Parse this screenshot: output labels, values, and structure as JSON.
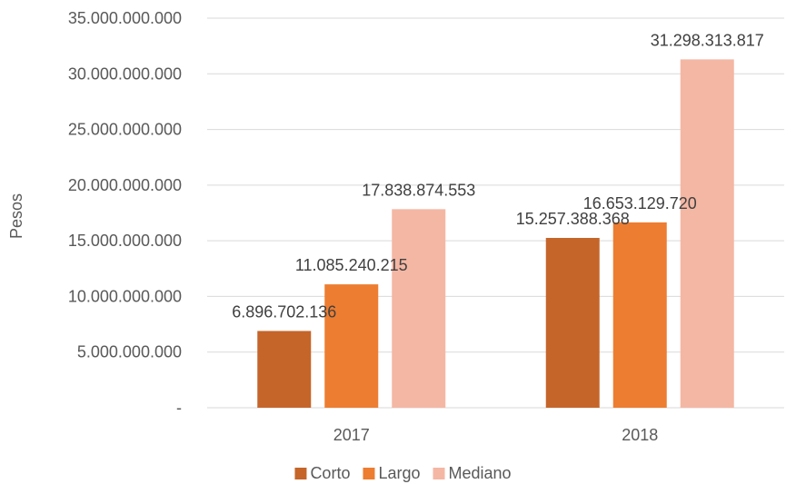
{
  "chart_data": {
    "type": "bar",
    "title": "",
    "xlabel": "",
    "ylabel": "Pesos",
    "categories": [
      "2017",
      "2018"
    ],
    "series": [
      {
        "name": "Corto",
        "color": "#C5652A",
        "values": [
          6896702136,
          15257388368
        ],
        "labels": [
          "6.896.702.136",
          "15.257.388.368"
        ]
      },
      {
        "name": "Largo",
        "color": "#ED7D31",
        "values": [
          11085240215,
          16653129720
        ],
        "labels": [
          "11.085.240.215",
          "16.653.129.720"
        ]
      },
      {
        "name": "Mediano",
        "color": "#F4B7A4",
        "values": [
          17838874553,
          31298313817
        ],
        "labels": [
          "17.838.874.553",
          "31.298.313.817"
        ]
      }
    ],
    "ylim": [
      0,
      35000000000
    ],
    "yticks": [
      {
        "value": 0,
        "label": "-"
      },
      {
        "value": 5000000000,
        "label": "5.000.000.000"
      },
      {
        "value": 10000000000,
        "label": "10.000.000.000"
      },
      {
        "value": 15000000000,
        "label": "15.000.000.000"
      },
      {
        "value": 20000000000,
        "label": "20.000.000.000"
      },
      {
        "value": 25000000000,
        "label": "25.000.000.000"
      },
      {
        "value": 30000000000,
        "label": "30.000.000.000"
      },
      {
        "value": 35000000000,
        "label": "35.000.000.000"
      }
    ],
    "grid": true,
    "legend_position": "bottom"
  }
}
